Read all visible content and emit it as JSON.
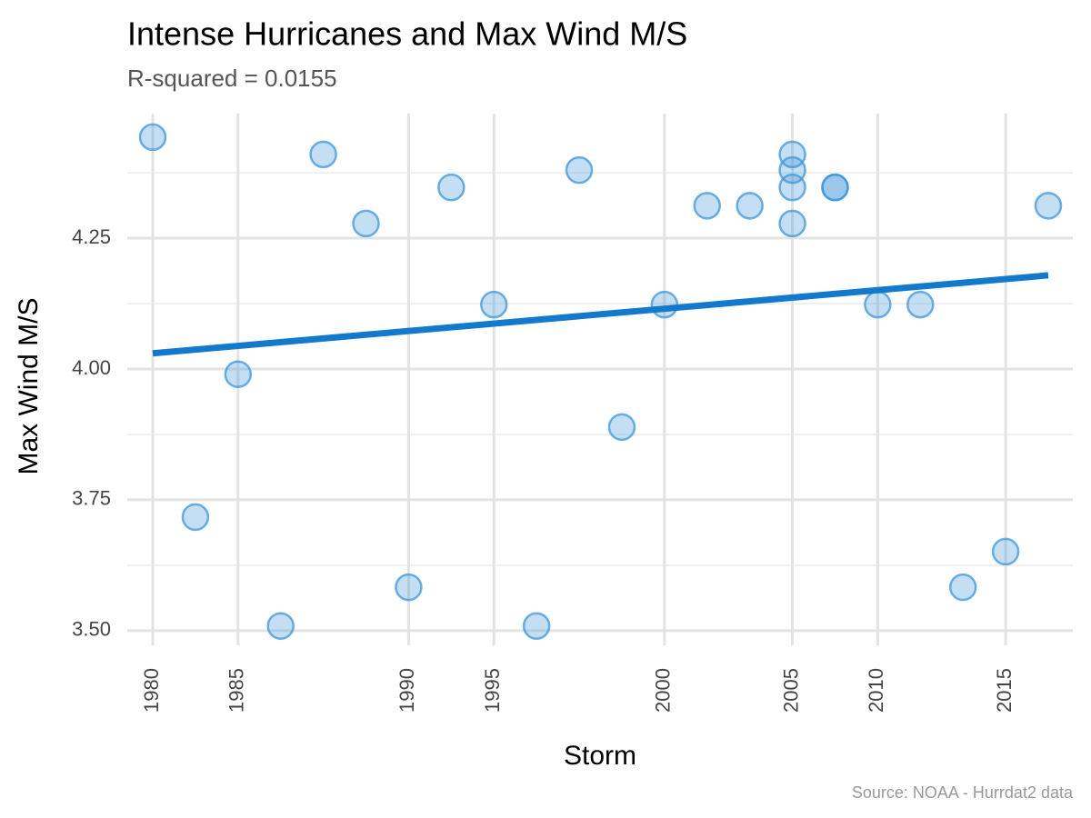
{
  "chart_data": {
    "type": "scatter",
    "title": "Intense Hurricanes and Max Wind M/S",
    "subtitle": "R-squared =  0.0155",
    "x_label": "Storm",
    "y_label": "Max Wind M/S",
    "caption": "Source: NOAA - Hurrdat2 data",
    "categories": [
      "1980",
      null,
      "1985",
      null,
      null,
      null,
      "1990",
      null,
      "1995",
      null,
      null,
      null,
      "2000",
      null,
      null,
      "2005",
      null,
      "2010",
      null,
      null,
      "2015",
      null
    ],
    "series": [
      {
        "color": "#3d96d8",
        "values": [
          4.443,
          3.717,
          3.99,
          3.509,
          4.41,
          4.278,
          3.583,
          4.347,
          4.123,
          3.509,
          4.38,
          3.889,
          4.123,
          4.312,
          4.312,
          4.41,
          4.347,
          4.123,
          4.123,
          3.583,
          3.651,
          4.312
        ]
      },
      {
        "color": "#3d96d8",
        "values": [
          null,
          null,
          null,
          null,
          null,
          null,
          null,
          null,
          null,
          null,
          null,
          null,
          null,
          null,
          null,
          4.38,
          4.347,
          null,
          null,
          null,
          null,
          null
        ]
      },
      {
        "color": "#3d96d8",
        "values": [
          null,
          null,
          null,
          null,
          null,
          null,
          null,
          null,
          null,
          null,
          null,
          null,
          null,
          null,
          null,
          4.347,
          null,
          null,
          null,
          null,
          null,
          null
        ]
      },
      {
        "color": "#3d96d8",
        "values": [
          null,
          null,
          null,
          null,
          null,
          null,
          null,
          null,
          null,
          null,
          null,
          null,
          null,
          null,
          null,
          4.278,
          null,
          null,
          null,
          null,
          null,
          null
        ]
      }
    ],
    "trend": {
      "color": "#1279cc",
      "values": [
        4.03,
        null,
        null,
        null,
        null,
        null,
        null,
        null,
        null,
        null,
        null,
        null,
        null,
        null,
        null,
        null,
        null,
        null,
        null,
        null,
        null,
        4.179
      ]
    },
    "ylim": [
      3.472,
      4.488
    ],
    "yticks": [
      {
        "value": 3.5,
        "label": "3.50"
      },
      3.75,
      {
        "value": 4,
        "label": "4.00"
      },
      4.25
    ],
    "grid": true,
    "minor_grid": true
  }
}
